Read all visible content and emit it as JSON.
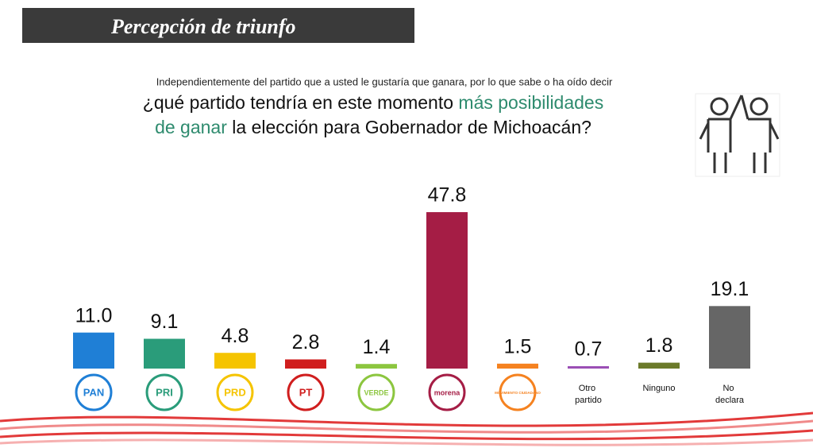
{
  "chart_data": {
    "type": "bar",
    "title": "Percepción de triunfo",
    "subtitle": "Independientemente del partido que a usted le gustaría que ganara, por lo que sabe o ha oído decir",
    "question_lines": [
      [
        {
          "text": "¿qué partido tendría en este momento ",
          "highlight": false
        },
        {
          "text": "más posibilidades",
          "highlight": true
        }
      ],
      [
        {
          "text": "de ganar",
          "highlight": true
        },
        {
          "text": " la elección para Gobernador de Michoacán?",
          "highlight": false
        }
      ]
    ],
    "highlight_color": "#2e8b6e",
    "categories": [
      "PAN",
      "PRI",
      "PRD",
      "PT",
      "VERDE",
      "morena",
      "MOVIMIENTO CIUDADANO",
      "Otro partido",
      "Ninguno",
      "No declara"
    ],
    "logo": [
      true,
      true,
      true,
      true,
      true,
      true,
      true,
      false,
      false,
      false
    ],
    "values": [
      11.0,
      9.1,
      4.8,
      2.8,
      1.4,
      47.8,
      1.5,
      0.7,
      1.8,
      19.1
    ],
    "value_labels": [
      "11.0",
      "9.1",
      "4.8",
      "2.8",
      "1.4",
      "47.8",
      "1.5",
      "0.7",
      "1.8",
      "19.1"
    ],
    "colors": [
      "#1f7fd6",
      "#2a9c7a",
      "#f5c400",
      "#d01e1e",
      "#8cc63f",
      "#a51d45",
      "#f58220",
      "#9b4fb5",
      "#6b7a2a",
      "#666666"
    ]
  }
}
